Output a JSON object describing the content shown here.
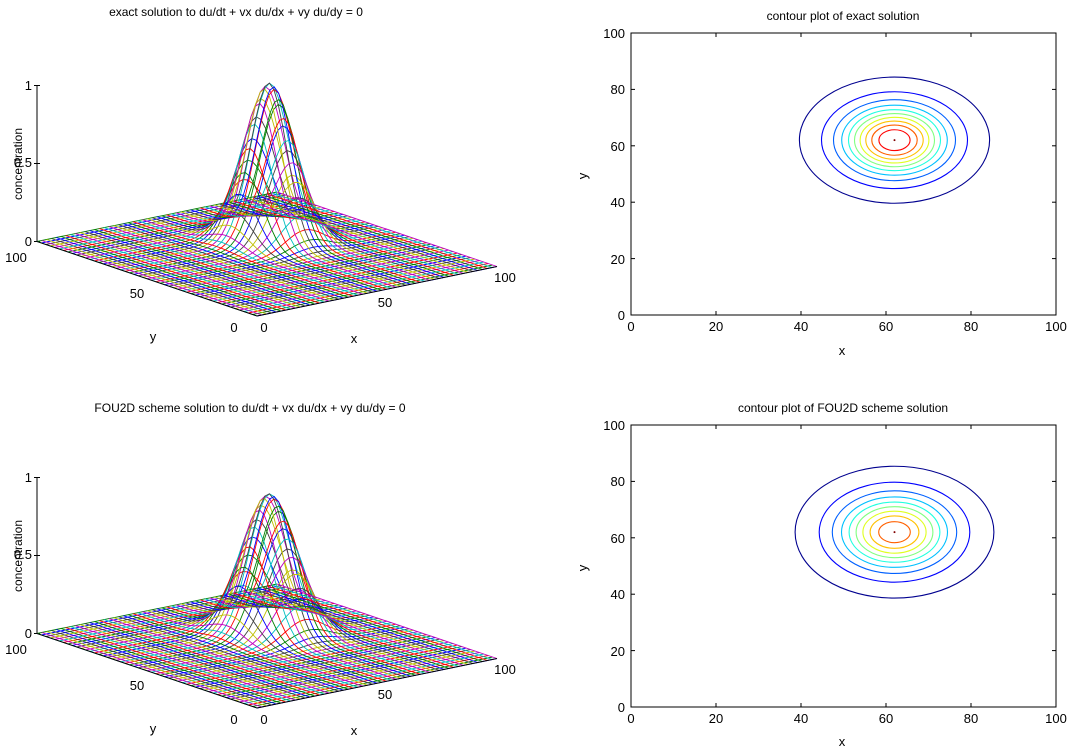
{
  "chart_data": [
    {
      "type": "surface",
      "title": "exact solution to du/dt + vx du/dx + vy du/dy = 0",
      "xlabel": "x",
      "ylabel": "y",
      "zlabel": "concentration",
      "xlim": [
        0,
        100
      ],
      "ylim": [
        0,
        100
      ],
      "zlim": [
        0,
        1
      ],
      "xticks": [
        "0",
        "50",
        "100"
      ],
      "yticks": [
        "0",
        "50",
        "100"
      ],
      "zticks": [
        "0",
        "0.5",
        "1"
      ],
      "peak": {
        "x": 62,
        "y": 62,
        "value": 1.0,
        "width": 8
      }
    },
    {
      "type": "contour",
      "title": "contour plot of exact solution",
      "xlabel": "x",
      "ylabel": "y",
      "xlim": [
        0,
        100
      ],
      "ylim": [
        0,
        100
      ],
      "xticks": [
        "0",
        "20",
        "40",
        "60",
        "80",
        "100"
      ],
      "yticks": [
        "0",
        "20",
        "40",
        "60",
        "80",
        "100"
      ],
      "peak": {
        "x": 62,
        "y": 62,
        "value": 1.0,
        "width": 8
      }
    },
    {
      "type": "surface",
      "title": "FOU2D scheme solution to du/dt + vx du/dx + vy du/dy = 0",
      "xlabel": "x",
      "ylabel": "y",
      "zlabel": "concentration",
      "xlim": [
        0,
        100
      ],
      "ylim": [
        0,
        100
      ],
      "zlim": [
        0,
        1
      ],
      "xticks": [
        "0",
        "50",
        "100"
      ],
      "yticks": [
        "0",
        "50",
        "100"
      ],
      "zticks": [
        "0",
        "0.5",
        "1"
      ],
      "peak": {
        "x": 62,
        "y": 62,
        "value": 0.88,
        "width": 8.5
      }
    },
    {
      "type": "contour",
      "title": "contour plot of FOU2D scheme solution",
      "xlabel": "x",
      "ylabel": "y",
      "xlim": [
        0,
        100
      ],
      "ylim": [
        0,
        100
      ],
      "xticks": [
        "0",
        "20",
        "40",
        "60",
        "80",
        "100"
      ],
      "yticks": [
        "0",
        "20",
        "40",
        "60",
        "80",
        "100"
      ],
      "peak": {
        "x": 62,
        "y": 62,
        "value": 0.88,
        "width": 8.5
      }
    }
  ],
  "colors": {
    "axes": "#000000",
    "palette": [
      "#0000ff",
      "#008000",
      "#ff0000",
      "#00bfbf",
      "#bf00bf",
      "#bfbf00",
      "#404040"
    ],
    "contour_levels": [
      "#00008f",
      "#0000ff",
      "#0060ff",
      "#00c0ff",
      "#20ffdf",
      "#80ff80",
      "#dfff20",
      "#ffc000",
      "#ff6000",
      "#ff0000",
      "#8f0000"
    ]
  }
}
